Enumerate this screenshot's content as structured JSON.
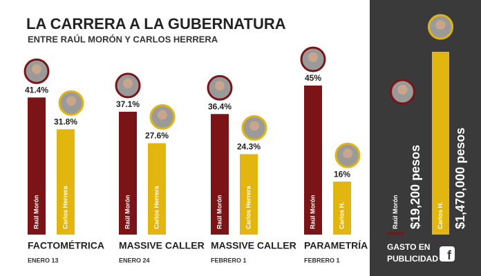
{
  "chart_data": [
    {
      "type": "bar",
      "title": "LA CARRERA A LA GUBERNATURA",
      "subtitle": "ENTRE RAÚL MORÓN Y CARLOS HERRERA",
      "categories": [
        "FACTOMÉTRICA",
        "MASSIVE CALLER",
        "MASSIVE CALLER",
        "PARAMETRÍA"
      ],
      "dates": [
        "ENERO 13",
        "ENERO 24",
        "FEBRERO 1",
        "FEBRERO 1"
      ],
      "series": [
        {
          "color": "#7a1416",
          "bar_labels": [
            "Raúl Morón",
            "Raúl Morón",
            "Raúl Morón",
            "Raúl Morón"
          ],
          "values": [
            41.4,
            37.1,
            36.4,
            45
          ],
          "value_labels": [
            "41.4%",
            "37.1%",
            "36.4%",
            "45%"
          ]
        },
        {
          "color": "#e3b50f",
          "bar_labels": [
            "Carlos Herrera",
            "Carlos Herrera",
            "Carlos Herrera",
            "Carlos H."
          ],
          "values": [
            31.8,
            27.6,
            24.3,
            16
          ],
          "value_labels": [
            "31.8%",
            "27.6%",
            "24.3%",
            "16%"
          ]
        }
      ]
    },
    {
      "type": "bar",
      "title": "GASTO EN PUBLICIDAD",
      "categories": [
        "Raúl Morón",
        "Carlos H."
      ],
      "colors": [
        "#7a1416",
        "#e3b50f"
      ],
      "values": [
        19200,
        1470000
      ],
      "value_labels": [
        "$19,200 pesos",
        "$1,470,000 pesos"
      ]
    }
  ]
}
